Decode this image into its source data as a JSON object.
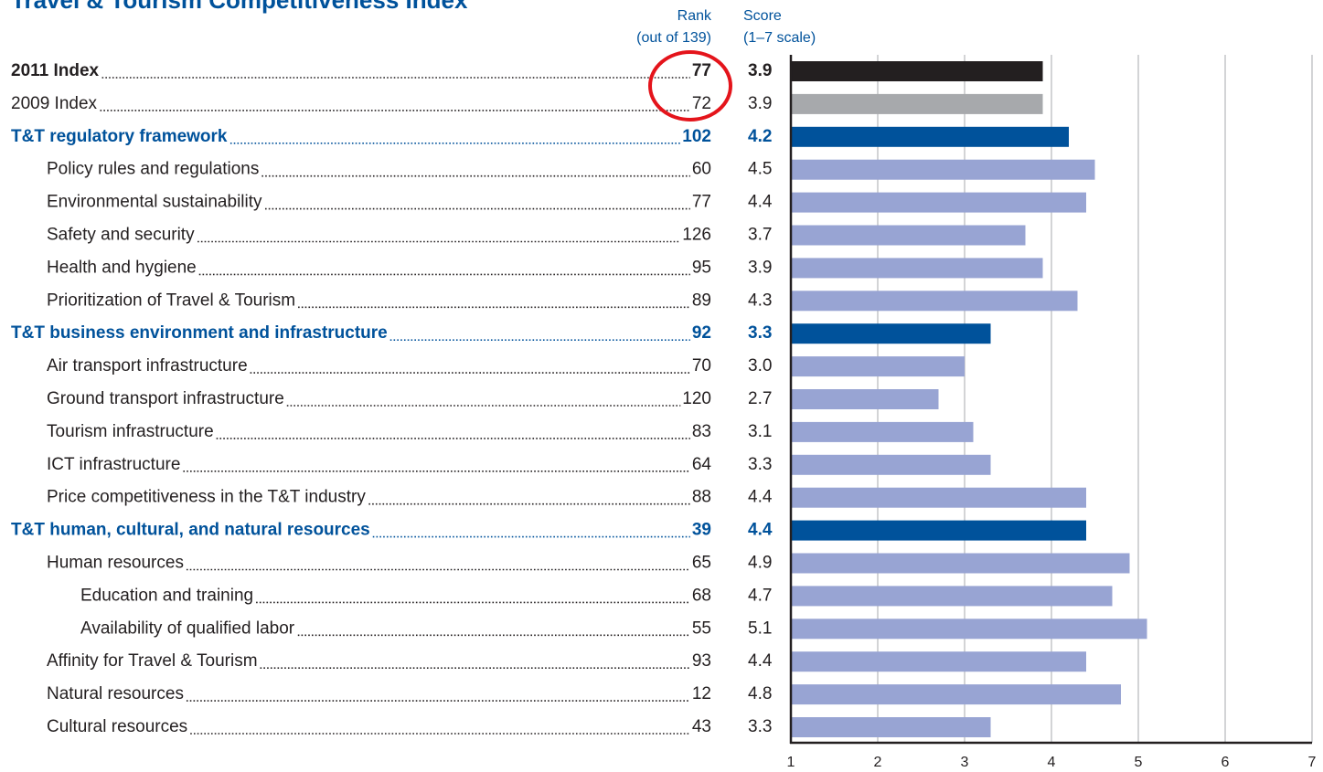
{
  "chart_data": {
    "type": "bar",
    "orientation": "horizontal",
    "title": "Travel & Tourism Competitiveness Index",
    "rank_header": "Rank",
    "rank_subheader": "(out of 139)",
    "score_header": "Score",
    "score_subheader": "(1–7 scale)",
    "categories": [
      "2011 Index",
      "2009 Index",
      "T&T regulatory framework",
      "Policy rules and regulations",
      "Environmental sustainability",
      "Safety and security",
      "Health and hygiene",
      "Prioritization of Travel & Tourism",
      "T&T business environment and infrastructure",
      "Air transport infrastructure",
      "Ground transport infrastructure",
      "Tourism infrastructure",
      "ICT infrastructure",
      "Price competitiveness in the T&T industry",
      "T&T human, cultural, and natural resources",
      "Human resources",
      "Education and training",
      "Availability of qualified labor",
      "Affinity for Travel & Tourism",
      "Natural resources",
      "Cultural resources"
    ],
    "levels": [
      "main",
      "previous",
      "pillar",
      "sub",
      "sub",
      "sub",
      "sub",
      "sub",
      "pillar",
      "sub",
      "sub",
      "sub",
      "sub",
      "sub",
      "pillar",
      "sub",
      "subsub",
      "subsub",
      "sub",
      "sub",
      "sub"
    ],
    "ranks": [
      77,
      72,
      102,
      60,
      77,
      126,
      95,
      89,
      92,
      70,
      120,
      83,
      64,
      88,
      39,
      65,
      68,
      55,
      93,
      12,
      43
    ],
    "values": [
      3.9,
      3.9,
      4.2,
      4.5,
      4.4,
      3.7,
      3.9,
      4.3,
      3.3,
      3.0,
      2.7,
      3.1,
      3.3,
      4.4,
      4.4,
      4.9,
      4.7,
      5.1,
      4.4,
      4.8,
      3.3
    ],
    "value_labels": [
      "3.9",
      "3.9",
      "4.2",
      "4.5",
      "4.4",
      "3.7",
      "3.9",
      "4.3",
      "3.3",
      "3.0",
      "2.7",
      "3.1",
      "3.3",
      "4.4",
      "4.4",
      "4.9",
      "4.7",
      "5.1",
      "4.4",
      "4.8",
      "3.3"
    ],
    "colors": [
      "#231f20",
      "#a7a9ac",
      "#00529b",
      "#98a4d3",
      "#98a4d3",
      "#98a4d3",
      "#98a4d3",
      "#98a4d3",
      "#00529b",
      "#98a4d3",
      "#98a4d3",
      "#98a4d3",
      "#98a4d3",
      "#98a4d3",
      "#00529b",
      "#98a4d3",
      "#98a4d3",
      "#98a4d3",
      "#98a4d3",
      "#98a4d3",
      "#98a4d3"
    ],
    "xlim": [
      1,
      7
    ],
    "xticks": [
      1,
      2,
      3,
      4,
      5,
      6,
      7
    ],
    "grid": true
  }
}
